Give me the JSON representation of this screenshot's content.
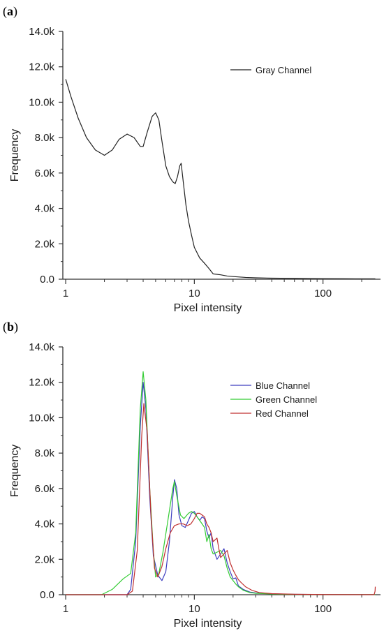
{
  "chart_data": [
    {
      "type": "line",
      "panel_label": "a",
      "xlabel": "Pixel intensity",
      "ylabel": "Frequency",
      "xscale": "log",
      "xlim": [
        0.95,
        280
      ],
      "ylim": [
        0,
        14000
      ],
      "x_ticks": [
        1,
        10,
        100
      ],
      "x_tick_labels": [
        "1",
        "10",
        "100"
      ],
      "y_ticks": [
        0,
        2000,
        4000,
        6000,
        8000,
        10000,
        12000,
        14000
      ],
      "y_tick_labels": [
        "0.0",
        "2.0k",
        "4.0k",
        "6.0k",
        "8.0k",
        "10.0k",
        "12.0k",
        "14.0k"
      ],
      "legend_position": "top-right",
      "series": [
        {
          "name": "Gray Channel",
          "color": "#222222",
          "points": [
            [
              1,
              11300
            ],
            [
              1.1,
              10300
            ],
            [
              1.25,
              9100
            ],
            [
              1.45,
              8000
            ],
            [
              1.7,
              7300
            ],
            [
              2,
              7000
            ],
            [
              2.3,
              7300
            ],
            [
              2.6,
              7900
            ],
            [
              3,
              8200
            ],
            [
              3.4,
              8000
            ],
            [
              3.8,
              7500
            ],
            [
              4,
              7500
            ],
            [
              4.3,
              8300
            ],
            [
              4.7,
              9200
            ],
            [
              5,
              9400
            ],
            [
              5.3,
              9000
            ],
            [
              5.6,
              7800
            ],
            [
              6,
              6400
            ],
            [
              6.4,
              5800
            ],
            [
              6.8,
              5500
            ],
            [
              7.1,
              5400
            ],
            [
              7.4,
              5800
            ],
            [
              7.7,
              6400
            ],
            [
              7.9,
              6550
            ],
            [
              8.2,
              5500
            ],
            [
              8.6,
              4200
            ],
            [
              9,
              3300
            ],
            [
              9.5,
              2500
            ],
            [
              10,
              1800
            ],
            [
              11,
              1200
            ],
            [
              12,
              900
            ],
            [
              13,
              600
            ],
            [
              14,
              300
            ],
            [
              16,
              250
            ],
            [
              18,
              180
            ],
            [
              20,
              150
            ],
            [
              25,
              100
            ],
            [
              30,
              80
            ],
            [
              40,
              60
            ],
            [
              55,
              50
            ],
            [
              70,
              40
            ],
            [
              100,
              30
            ],
            [
              150,
              25
            ],
            [
              200,
              20
            ],
            [
              255,
              20
            ]
          ]
        }
      ]
    },
    {
      "type": "line",
      "panel_label": "b",
      "xlabel": "Pixel intensity",
      "ylabel": "Frequency",
      "xscale": "log",
      "xlim": [
        0.95,
        280
      ],
      "ylim": [
        0,
        14000
      ],
      "x_ticks": [
        1,
        10,
        100
      ],
      "x_tick_labels": [
        "1",
        "10",
        "100"
      ],
      "y_ticks": [
        0,
        2000,
        4000,
        6000,
        8000,
        10000,
        12000,
        14000
      ],
      "y_tick_labels": [
        "0.0",
        "2.0k",
        "4.0k",
        "6.0k",
        "8.0k",
        "10.0k",
        "12.0k",
        "14.0k"
      ],
      "legend_position": "top-right",
      "series": [
        {
          "name": "Blue Channel",
          "color": "#3d3dbf",
          "points": [
            [
              1,
              0
            ],
            [
              2,
              0
            ],
            [
              3,
              0
            ],
            [
              3.2,
              300
            ],
            [
              3.5,
              3000
            ],
            [
              3.8,
              9500
            ],
            [
              4,
              12000
            ],
            [
              4.2,
              10500
            ],
            [
              4.5,
              5500
            ],
            [
              4.8,
              2200
            ],
            [
              5.2,
              1100
            ],
            [
              5.6,
              800
            ],
            [
              6,
              1300
            ],
            [
              6.4,
              3000
            ],
            [
              6.8,
              5500
            ],
            [
              7,
              6500
            ],
            [
              7.3,
              6000
            ],
            [
              7.6,
              4500
            ],
            [
              8,
              3900
            ],
            [
              8.5,
              3800
            ],
            [
              9,
              4200
            ],
            [
              9.5,
              4600
            ],
            [
              10,
              4700
            ],
            [
              10.5,
              4400
            ],
            [
              11,
              4200
            ],
            [
              11.5,
              4400
            ],
            [
              12,
              4300
            ],
            [
              12.5,
              3600
            ],
            [
              13,
              3200
            ],
            [
              13.5,
              3500
            ],
            [
              14,
              2600
            ],
            [
              15,
              2000
            ],
            [
              16,
              2300
            ],
            [
              17,
              2600
            ],
            [
              18,
              1800
            ],
            [
              19,
              1300
            ],
            [
              20,
              900
            ],
            [
              21,
              950
            ],
            [
              22,
              500
            ],
            [
              24,
              300
            ],
            [
              27,
              150
            ],
            [
              30,
              100
            ],
            [
              40,
              50
            ],
            [
              60,
              20
            ],
            [
              100,
              10
            ],
            [
              200,
              5
            ],
            [
              255,
              5
            ]
          ]
        },
        {
          "name": "Green Channel",
          "color": "#33cc33",
          "points": [
            [
              1,
              0
            ],
            [
              1.5,
              0
            ],
            [
              1.9,
              0
            ],
            [
              2.3,
              300
            ],
            [
              2.8,
              900
            ],
            [
              3.2,
              1200
            ],
            [
              3.5,
              3500
            ],
            [
              3.8,
              10500
            ],
            [
              4,
              12600
            ],
            [
              4.2,
              11000
            ],
            [
              4.5,
              6000
            ],
            [
              4.8,
              2500
            ],
            [
              5,
              1000
            ],
            [
              5.3,
              1200
            ],
            [
              5.7,
              2400
            ],
            [
              6.2,
              4100
            ],
            [
              6.8,
              6000
            ],
            [
              7,
              6400
            ],
            [
              7.3,
              5600
            ],
            [
              7.8,
              4500
            ],
            [
              8.3,
              4300
            ],
            [
              9,
              4600
            ],
            [
              9.5,
              4700
            ],
            [
              10,
              4600
            ],
            [
              10.5,
              4400
            ],
            [
              11,
              4200
            ],
            [
              12,
              3800
            ],
            [
              12.5,
              3000
            ],
            [
              13,
              3400
            ],
            [
              13.5,
              2600
            ],
            [
              14,
              2300
            ],
            [
              15,
              2400
            ],
            [
              16,
              2500
            ],
            [
              17,
              2200
            ],
            [
              18,
              1500
            ],
            [
              19,
              1000
            ],
            [
              20,
              800
            ],
            [
              21,
              600
            ],
            [
              22,
              450
            ],
            [
              24,
              250
            ],
            [
              27,
              120
            ],
            [
              30,
              80
            ],
            [
              40,
              40
            ],
            [
              60,
              15
            ],
            [
              100,
              8
            ],
            [
              200,
              5
            ],
            [
              255,
              5
            ]
          ]
        },
        {
          "name": "Red Channel",
          "color": "#c03030",
          "points": [
            [
              1,
              0
            ],
            [
              2,
              0
            ],
            [
              3,
              0
            ],
            [
              3.3,
              200
            ],
            [
              3.6,
              2500
            ],
            [
              3.9,
              9000
            ],
            [
              4.05,
              10800
            ],
            [
              4.3,
              9200
            ],
            [
              4.6,
              4500
            ],
            [
              4.9,
              1500
            ],
            [
              5.2,
              1000
            ],
            [
              5.6,
              1600
            ],
            [
              6,
              2600
            ],
            [
              6.5,
              3500
            ],
            [
              7,
              3900
            ],
            [
              7.6,
              4000
            ],
            [
              8.2,
              4000
            ],
            [
              8.8,
              3900
            ],
            [
              9.4,
              4000
            ],
            [
              10,
              4300
            ],
            [
              10.5,
              4600
            ],
            [
              11,
              4600
            ],
            [
              11.5,
              4500
            ],
            [
              12,
              4400
            ],
            [
              12.5,
              4000
            ],
            [
              13,
              3800
            ],
            [
              13.5,
              3500
            ],
            [
              14,
              3000
            ],
            [
              15,
              3200
            ],
            [
              15.5,
              2600
            ],
            [
              16,
              2100
            ],
            [
              17,
              2300
            ],
            [
              18,
              2500
            ],
            [
              19,
              1800
            ],
            [
              20,
              1400
            ],
            [
              21,
              1100
            ],
            [
              22,
              850
            ],
            [
              23,
              700
            ],
            [
              25,
              450
            ],
            [
              28,
              250
            ],
            [
              32,
              120
            ],
            [
              40,
              60
            ],
            [
              60,
              25
            ],
            [
              100,
              10
            ],
            [
              200,
              5
            ],
            [
              250,
              5
            ],
            [
              254,
              200
            ],
            [
              255,
              450
            ]
          ]
        }
      ]
    }
  ]
}
